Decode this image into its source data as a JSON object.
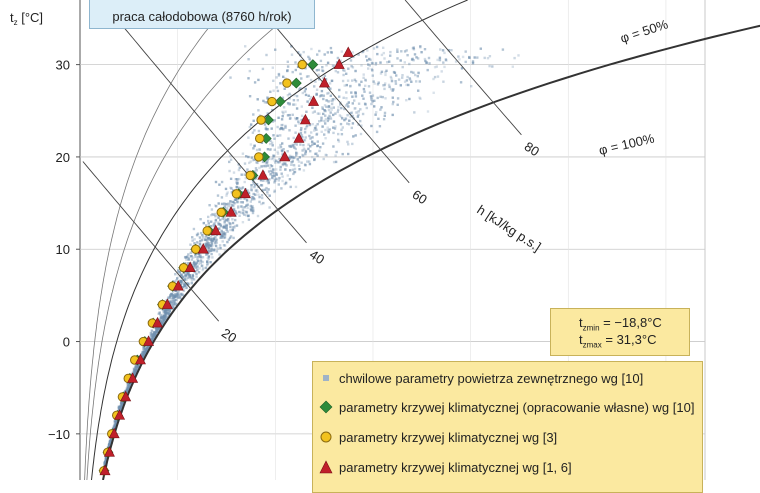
{
  "chart_data": {
    "type": "scatter",
    "info_text": "praca całodobowa (8760 h/rok)",
    "y_axis_label_main": "t",
    "y_axis_label_sub": "z",
    "y_axis_label_unit": " [°C]",
    "yticks": [
      30,
      20,
      10,
      0,
      -10
    ],
    "ytick_labels": [
      "30",
      "20",
      "10",
      "0",
      "−10"
    ],
    "ylim": [
      -15,
      37
    ],
    "xlim_x_content_g_per_kg": [
      0,
      32
    ],
    "grid": true,
    "rh_curves": [
      {
        "phi": 100,
        "label": "φ = 100%"
      },
      {
        "phi": 50,
        "label": "φ = 50%"
      }
    ],
    "enthalpy_lines": [
      {
        "h": 20,
        "label": "20"
      },
      {
        "h": 40,
        "label": "40"
      },
      {
        "h": 60,
        "label": "60"
      },
      {
        "h": 80,
        "label": "80"
      }
    ],
    "enthalpy_axis_label": "h [kJ/kg p.s.]",
    "t_box": {
      "line1_main": "t",
      "line1_sub": "zmin",
      "line1_value": " = −18,8°C",
      "line2_main": "t",
      "line2_sub": "zmax",
      "line2_value": " = 31,3°C"
    },
    "legend": [
      {
        "label": "chwilowe parametry powietrza zewnętrznego wg [10]",
        "marker": "square",
        "color": "#9fb3c8"
      },
      {
        "label": "parametry krzywej klimatycznej (opracowanie własne) wg [10]",
        "marker": "diamond",
        "color": "#2e8b3a"
      },
      {
        "label": "parametry krzywej klimatycznej wg [3]",
        "marker": "circle",
        "color": "#f2c21d"
      },
      {
        "label": "parametry krzywej klimatycznej wg [1, 6]",
        "marker": "triangle",
        "color": "#c0202a"
      }
    ],
    "series": [
      {
        "name": "parametry krzywej klimatycznej (opracowanie własne) wg [10]",
        "points_t_rh": [
          [
            -14,
            96
          ],
          [
            -12,
            95
          ],
          [
            -10,
            94
          ],
          [
            -8,
            93
          ],
          [
            -6,
            92
          ],
          [
            -4,
            91
          ],
          [
            -2,
            90
          ],
          [
            0,
            88
          ],
          [
            2,
            86
          ],
          [
            4,
            84
          ],
          [
            6,
            82
          ],
          [
            8,
            80
          ],
          [
            10,
            78
          ],
          [
            12,
            76
          ],
          [
            14,
            74
          ],
          [
            16,
            72
          ],
          [
            18,
            69
          ],
          [
            20,
            65
          ],
          [
            22,
            58
          ],
          [
            24,
            52
          ],
          [
            26,
            49
          ],
          [
            28,
            47
          ],
          [
            30,
            45
          ]
        ]
      },
      {
        "name": "parametry krzywej klimatycznej wg [3]",
        "points_t_rh": [
          [
            -14,
            95
          ],
          [
            -12,
            94
          ],
          [
            -10,
            92
          ],
          [
            -8,
            91
          ],
          [
            -6,
            90
          ],
          [
            -4,
            88
          ],
          [
            -2,
            86
          ],
          [
            0,
            86
          ],
          [
            2,
            85
          ],
          [
            4,
            84
          ],
          [
            6,
            82
          ],
          [
            8,
            80
          ],
          [
            10,
            78
          ],
          [
            12,
            75
          ],
          [
            14,
            73
          ],
          [
            16,
            71
          ],
          [
            18,
            68
          ],
          [
            20,
            63
          ],
          [
            22,
            56
          ],
          [
            24,
            50
          ],
          [
            26,
            47
          ],
          [
            28,
            45
          ],
          [
            30,
            43
          ]
        ]
      },
      {
        "name": "parametry krzywej klimatycznej wg [1, 6]",
        "points_t_rh": [
          [
            -14,
            100
          ],
          [
            -12,
            100
          ],
          [
            -10,
            99
          ],
          [
            -8,
            98
          ],
          [
            -6,
            97
          ],
          [
            -4,
            96
          ],
          [
            -2,
            95
          ],
          [
            0,
            93
          ],
          [
            2,
            91
          ],
          [
            4,
            89
          ],
          [
            6,
            87
          ],
          [
            8,
            85
          ],
          [
            10,
            83
          ],
          [
            12,
            80
          ],
          [
            14,
            78
          ],
          [
            16,
            75
          ],
          [
            18,
            73
          ],
          [
            20,
            72
          ],
          [
            22,
            68
          ],
          [
            24,
            62
          ],
          [
            26,
            57
          ],
          [
            28,
            53
          ],
          [
            30,
            50
          ],
          [
            31.3,
            48
          ]
        ]
      }
    ]
  },
  "colors": {
    "scatter": "#6f8fae",
    "diamond": "#2e8b3a",
    "circle": "#f2c21d",
    "triangle": "#c0202a",
    "curve": "#333333",
    "grid": "#c8c8c8"
  }
}
